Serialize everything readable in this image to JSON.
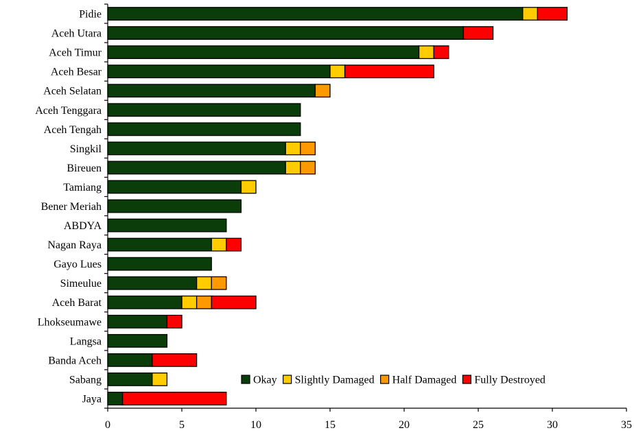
{
  "chart_data": {
    "type": "bar",
    "orientation": "horizontal",
    "stacked": true,
    "categories": [
      "Pidie",
      "Aceh Utara",
      "Aceh Timur",
      "Aceh Besar",
      "Aceh Selatan",
      "Aceh Tenggara",
      "Aceh Tengah",
      "Singkil",
      "Bireuen",
      "Tamiang",
      "Bener Meriah",
      "ABDYA",
      "Nagan Raya",
      "Gayo Lues",
      "Simeulue",
      "Aceh Barat",
      "Lhokseumawe",
      "Langsa",
      "Banda Aceh",
      "Sabang",
      "Jaya"
    ],
    "series": [
      {
        "name": "Okay",
        "color": "#0b3d0b",
        "values": [
          28,
          24,
          21,
          15,
          14,
          13,
          13,
          12,
          12,
          9,
          9,
          8,
          7,
          7,
          6,
          5,
          4,
          4,
          3,
          3,
          1
        ]
      },
      {
        "name": "Slightly Damaged",
        "color": "#ffcc00",
        "values": [
          1,
          0,
          1,
          1,
          0,
          0,
          0,
          1,
          1,
          1,
          0,
          0,
          1,
          0,
          1,
          1,
          0,
          0,
          0,
          1,
          0
        ]
      },
      {
        "name": "Half Damaged",
        "color": "#ff9900",
        "values": [
          0,
          0,
          0,
          0,
          1,
          0,
          0,
          1,
          1,
          0,
          0,
          0,
          0,
          0,
          1,
          1,
          0,
          0,
          0,
          0,
          0
        ]
      },
      {
        "name": "Fully Destroyed",
        "color": "#ff0000",
        "values": [
          2,
          2,
          1,
          6,
          0,
          0,
          0,
          0,
          0,
          0,
          0,
          0,
          1,
          0,
          0,
          3,
          1,
          0,
          3,
          0,
          7
        ]
      }
    ],
    "xlim": [
      0,
      35
    ],
    "xticks": [
      0,
      5,
      10,
      15,
      20,
      25,
      30,
      35
    ],
    "title": "",
    "xlabel": "",
    "ylabel": "",
    "grid": false,
    "legend_position": "bottom-right"
  }
}
